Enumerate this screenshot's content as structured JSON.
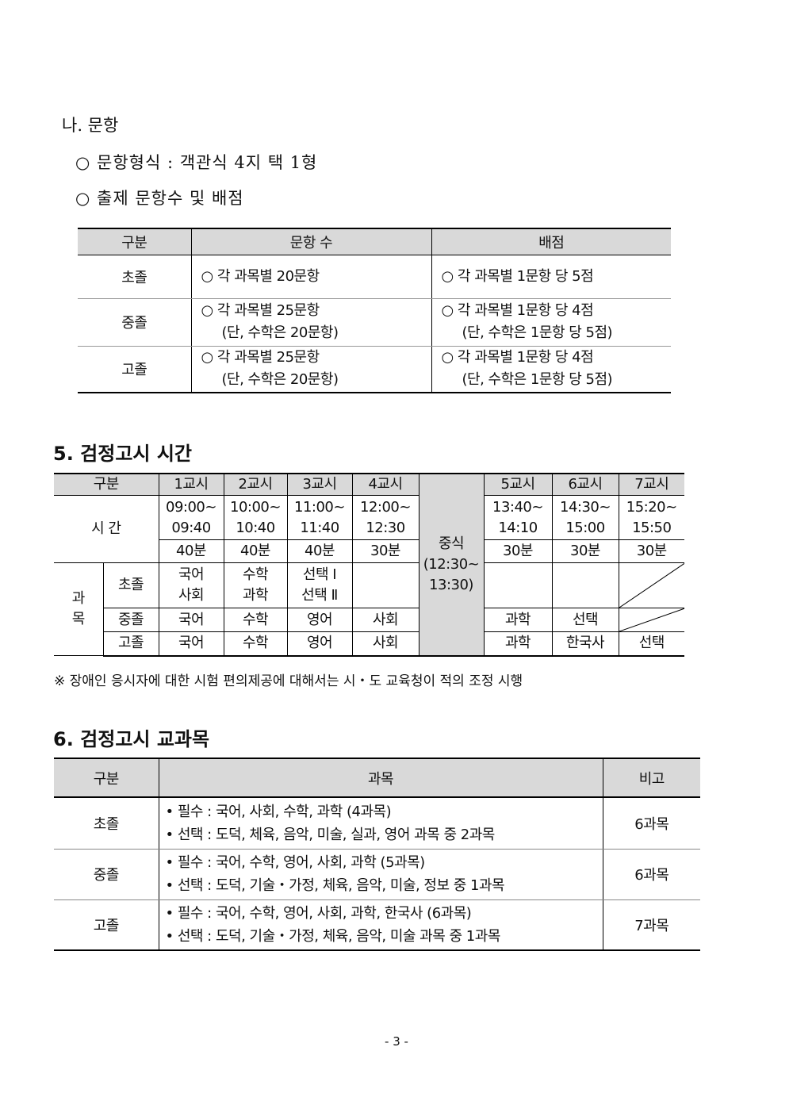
{
  "section_na": {
    "title": "나. 문항",
    "item1": "○ 문항형식 : 객관식 4지 택 1형",
    "item2": "○ 출제 문항수 및 배점"
  },
  "table1": {
    "headers": [
      "구분",
      "문항 수",
      "배점"
    ],
    "rows": [
      {
        "level": "초졸",
        "count": [
          "○ 각 과목별 20문항"
        ],
        "score": [
          "○ 각 과목별 1문항 당 5점"
        ]
      },
      {
        "level": "중졸",
        "count": [
          "○ 각 과목별 25문항",
          "(단, 수학은 20문항)"
        ],
        "score": [
          "○ 각 과목별 1문항 당 4점",
          "(단, 수학은 1문항 당 5점)"
        ]
      },
      {
        "level": "고졸",
        "count": [
          "○ 각 과목별 25문항",
          "(단, 수학은 20문항)"
        ],
        "score": [
          "○ 각 과목별 1문항 당 4점",
          "(단, 수학은 1문항 당 5점)"
        ]
      }
    ]
  },
  "section5": {
    "title": "5. 검정고시 시간"
  },
  "table2": {
    "header": [
      "구분",
      "1교시",
      "2교시",
      "3교시",
      "4교시",
      "5교시",
      "6교시",
      "7교시"
    ],
    "time_label": "시 간",
    "start": [
      "09:00~",
      "10:00~",
      "11:00~",
      "12:00~",
      "13:40~",
      "14:30~",
      "15:20~"
    ],
    "end": [
      "09:40",
      "10:40",
      "11:40",
      "12:30",
      "14:10",
      "15:00",
      "15:50"
    ],
    "duration": [
      "40분",
      "40분",
      "40분",
      "30분",
      "30분",
      "30분",
      "30분"
    ],
    "lunch": {
      "label": "중식",
      "time1": "(12:30~",
      "time2": "13:30)"
    },
    "subject_label": [
      "과",
      "목"
    ],
    "elem": {
      "label": "초졸",
      "p1": [
        "국어",
        "사회"
      ],
      "p2": [
        "수학",
        "과학"
      ],
      "p3": [
        "선택 Ⅰ",
        "선택 Ⅱ"
      ]
    },
    "mid": {
      "label": "중졸",
      "periods": [
        "국어",
        "수학",
        "영어",
        "사회",
        "과학",
        "선택"
      ]
    },
    "high": {
      "label": "고졸",
      "periods": [
        "국어",
        "수학",
        "영어",
        "사회",
        "과학",
        "한국사",
        "선택"
      ]
    },
    "lunch_color": "#b4c6f0"
  },
  "note": "※ 장애인 응시자에 대한 시험 편의제공에 대해서는 시・도 교육청이 적의 조정 시행",
  "section6": {
    "title": "6. 검정고시 교과목"
  },
  "table3": {
    "headers": [
      "구분",
      "과목",
      "비고"
    ],
    "rows": [
      {
        "level": "초졸",
        "req": "• 필수 : 국어, 사회, 수학, 과학 (4과목)",
        "opt": "• 선택 : 도덕, 체육, 음악, 미술, 실과, 영어 과목 중 2과목",
        "note": "6과목"
      },
      {
        "level": "중졸",
        "req": "• 필수 : 국어, 수학, 영어, 사회, 과학 (5과목)",
        "opt": "• 선택 : 도덕, 기술・가정, 체육, 음악, 미술, 정보 중 1과목",
        "note": "6과목"
      },
      {
        "level": "고졸",
        "req": "• 필수 : 국어, 수학, 영어, 사회, 과학, 한국사 (6과목)",
        "opt": "• 선택 : 도덕, 기술・가정, 체육, 음악, 미술 과목 중 1과목",
        "note": "7과목"
      }
    ]
  },
  "page_number": "- 3 -"
}
